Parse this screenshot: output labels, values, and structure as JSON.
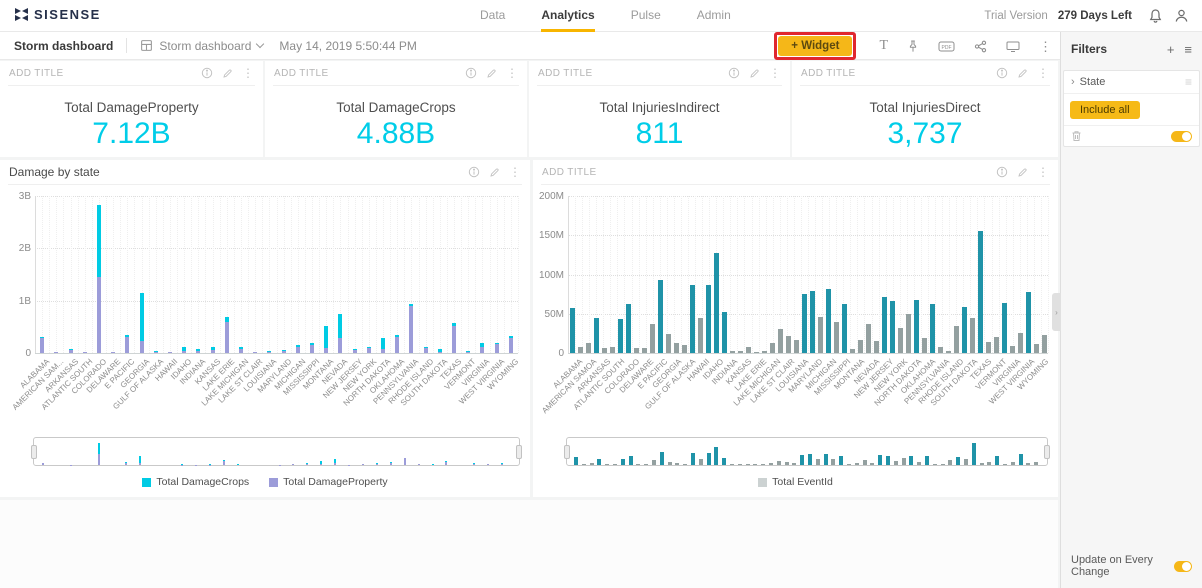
{
  "nav": {
    "logo_text": "SISENSE",
    "tabs": [
      {
        "label": "Data",
        "active": false
      },
      {
        "label": "Analytics",
        "active": true
      },
      {
        "label": "Pulse",
        "active": false
      },
      {
        "label": "Admin",
        "active": false
      }
    ],
    "trial_label": "Trial Version",
    "trial_days": "279 Days Left",
    "icons": [
      "bell-icon",
      "user-icon"
    ]
  },
  "toolbar": {
    "dashboard_title": "Storm dashboard",
    "dashboard_selector_label": "Storm dashboard",
    "timestamp": "May 14, 2019 5:50:44 PM",
    "widget_button_label": "+ Widget",
    "widget_button_highlighted": true,
    "icons": [
      "text-icon",
      "pin-icon",
      "pdf-export-icon",
      "share-icon",
      "display-mode-icon",
      "more-options-icon"
    ]
  },
  "kpis": [
    {
      "header": "ADD TITLE",
      "label": "Total DamageProperty",
      "value": "7.12B"
    },
    {
      "header": "ADD TITLE",
      "label": "Total DamageCrops",
      "value": "4.88B"
    },
    {
      "header": "ADD TITLE",
      "label": "Total InjuriesIndirect",
      "value": "811"
    },
    {
      "header": "ADD TITLE",
      "label": "Total InjuriesDirect",
      "value": "3,737"
    }
  ],
  "filters": {
    "title": "Filters",
    "icons": [
      "plus-icon",
      "menu-icon"
    ],
    "items": [
      {
        "name": "State",
        "value": "Include all",
        "toggle_on": true
      }
    ],
    "footer_label": "Update on Every Change",
    "footer_toggle_on": true
  },
  "colors": {
    "accent_yellow": "#f5b718",
    "annotation_red": "#e0272e",
    "kpi_value_cyan": "#00cde8",
    "crops_cyan": "#00cbe4",
    "property_purple": "#9c9cd9",
    "eventid_teal": "#1f93a8",
    "eventid_gray": "#93a0a0",
    "eventid_legend_gray": "#ccd2d2"
  },
  "chart_data": [
    {
      "type": "bar",
      "title": "Damage by state",
      "header_icons": [
        "info-icon",
        "edit-icon",
        "more-icon"
      ],
      "stacked": true,
      "legend_position": "bottom",
      "navigator": true,
      "yticks": [
        "3B",
        "2B",
        "1B",
        "0"
      ],
      "ymax_billions": 3,
      "categories": [
        "ALABAMA",
        "AMERICAN SAM...",
        "ARKANSAS",
        "ATLANTIC SOUTH",
        "COLORADO",
        "DELAWARE",
        "E PACIFIC",
        "GEORGIA",
        "GULF OF ALASKA",
        "HAWAII",
        "IDAHO",
        "INDIANA",
        "KANSAS",
        "LAKE ERIE",
        "LAKE MICHIGAN",
        "LAKE ST CLAIR",
        "LOUISIANA",
        "MARYLAND",
        "MICHIGAN",
        "MISSISSIPPI",
        "MONTANA",
        "NEVADA",
        "NEW JERSEY",
        "NEW YORK",
        "NORTH DAKOTA",
        "OKLAHOMA",
        "PENNSYLVANIA",
        "RHODE ISLAND",
        "SOUTH DAKOTA",
        "TEXAS",
        "VERMONT",
        "VIRGINIA",
        "WEST VIRGINIA",
        "WYOMING"
      ],
      "series": [
        {
          "name": "Total DamageCrops",
          "color": "#00cbe4",
          "values_billions": [
            0.02,
            0.0,
            0.02,
            0.0,
            1.37,
            0.0,
            0.05,
            0.93,
            0.01,
            0.0,
            0.08,
            0.03,
            0.06,
            0.08,
            0.04,
            0.0,
            0.01,
            0.01,
            0.03,
            0.05,
            0.42,
            0.47,
            0.02,
            0.02,
            0.2,
            0.05,
            0.03,
            0.02,
            0.06,
            0.05,
            0.01,
            0.08,
            0.02,
            0.04
          ]
        },
        {
          "name": "Total DamageProperty",
          "color": "#9c9cd9",
          "values_billions": [
            0.28,
            0.02,
            0.05,
            0.02,
            1.45,
            0.02,
            0.3,
            0.22,
            0.02,
            0.01,
            0.04,
            0.04,
            0.06,
            0.6,
            0.08,
            0.01,
            0.02,
            0.04,
            0.12,
            0.15,
            0.1,
            0.28,
            0.06,
            0.1,
            0.08,
            0.3,
            0.9,
            0.1,
            0.02,
            0.52,
            0.03,
            0.12,
            0.18,
            0.28
          ]
        }
      ]
    },
    {
      "type": "bar",
      "title": "ADD TITLE",
      "header_icons": [
        "info-icon",
        "edit-icon",
        "more-icon"
      ],
      "legend_position": "bottom",
      "navigator": true,
      "yticks": [
        "200M",
        "150M",
        "100M",
        "50M",
        "0"
      ],
      "ymax_millions": 200,
      "categories": [
        "ALABAMA",
        "AMERICAN SAMOA",
        "ARKANSAS",
        "ATLANTIC SOUTH",
        "COLORADO",
        "DELAWARE",
        "E PACIFIC",
        "GEORGIA",
        "GULF OF ALASKA",
        "HAWAII",
        "IDAHO",
        "INDIANA",
        "KANSAS",
        "LAKE ERIE",
        "LAKE MICHIGAN",
        "LAKE ST CLAIR",
        "LOUISIANA",
        "MARYLAND",
        "MICHIGAN",
        "MISSISSIPPI",
        "MONTANA",
        "NEVADA",
        "NEW JERSEY",
        "NEW YORK",
        "NORTH DAKOTA",
        "OKLAHOMA",
        "PENNSYLVANIA",
        "RHODE ISLAND",
        "SOUTH DAKOTA",
        "TEXAS",
        "VERMONT",
        "VIRGINIA",
        "WEST VIRGINIA",
        "WYOMING"
      ],
      "series": [
        {
          "name": "Total EventId",
          "legend_color": "#ccd2d2"
        }
      ],
      "bar_colors": {
        "teal": "#1f93a8",
        "gray": "#93a0a0"
      },
      "bars_values_millions": [
        57,
        8,
        13,
        44,
        7,
        8,
        43,
        63,
        6,
        7,
        37,
        93,
        24,
        13,
        10,
        87,
        44,
        87,
        128,
        52,
        2,
        3,
        8,
        1,
        2,
        13,
        30,
        22,
        16,
        75,
        79,
        46,
        82,
        40,
        63,
        5,
        16,
        37,
        15,
        71,
        66,
        32,
        50,
        67,
        19,
        62,
        8,
        2,
        34,
        58,
        45,
        155,
        14,
        21,
        64,
        9,
        25,
        78,
        11,
        23
      ],
      "bars_colors": [
        "teal",
        "gray",
        "gray",
        "teal",
        "gray",
        "gray",
        "teal",
        "teal",
        "gray",
        "gray",
        "gray",
        "teal",
        "gray",
        "gray",
        "gray",
        "teal",
        "gray",
        "teal",
        "teal",
        "teal",
        "gray",
        "gray",
        "gray",
        "gray",
        "gray",
        "gray",
        "gray",
        "gray",
        "gray",
        "teal",
        "teal",
        "gray",
        "teal",
        "gray",
        "teal",
        "gray",
        "gray",
        "gray",
        "gray",
        "teal",
        "teal",
        "gray",
        "gray",
        "teal",
        "gray",
        "teal",
        "gray",
        "gray",
        "gray",
        "teal",
        "gray",
        "teal",
        "gray",
        "gray",
        "teal",
        "gray",
        "gray",
        "teal",
        "gray",
        "gray"
      ]
    }
  ]
}
